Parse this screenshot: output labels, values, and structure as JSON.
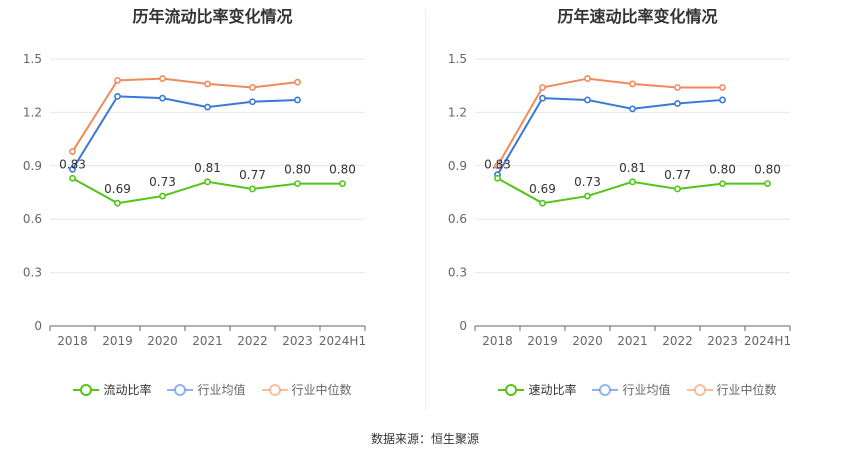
{
  "source_text": "数据来源：恒生聚源",
  "chart_data": [
    {
      "type": "line",
      "title": "历年流动比率变化情况",
      "categories": [
        "2018",
        "2019",
        "2020",
        "2021",
        "2022",
        "2023",
        "2024H1"
      ],
      "ylim": [
        0,
        1.5
      ],
      "yticks": [
        "0",
        "0.3",
        "0.6",
        "0.9",
        "1.2",
        "1.5"
      ],
      "grid": true,
      "legend_position": "bottom",
      "series": [
        {
          "name": "流动比率",
          "color": "#52c41a",
          "values": [
            0.83,
            0.69,
            0.73,
            0.81,
            0.77,
            0.8,
            0.8
          ],
          "labels": [
            "0.83",
            "0.69",
            "0.73",
            "0.81",
            "0.77",
            "0.80",
            "0.80"
          ],
          "show_labels": true
        },
        {
          "name": "行业均值",
          "color": "#3a78d8",
          "values": [
            0.88,
            1.29,
            1.28,
            1.23,
            1.26,
            1.27,
            null
          ],
          "show_labels": false
        },
        {
          "name": "行业中位数",
          "color": "#f08a5d",
          "values": [
            0.98,
            1.38,
            1.39,
            1.36,
            1.34,
            1.37,
            null
          ],
          "show_labels": false
        }
      ]
    },
    {
      "type": "line",
      "title": "历年速动比率变化情况",
      "categories": [
        "2018",
        "2019",
        "2020",
        "2021",
        "2022",
        "2023",
        "2024H1"
      ],
      "ylim": [
        0,
        1.5
      ],
      "yticks": [
        "0",
        "0.3",
        "0.6",
        "0.9",
        "1.2",
        "1.5"
      ],
      "grid": true,
      "legend_position": "bottom",
      "series": [
        {
          "name": "速动比率",
          "color": "#52c41a",
          "values": [
            0.83,
            0.69,
            0.73,
            0.81,
            0.77,
            0.8,
            0.8
          ],
          "labels": [
            "0.83",
            "0.69",
            "0.73",
            "0.81",
            "0.77",
            "0.80",
            "0.80"
          ],
          "show_labels": true
        },
        {
          "name": "行业均值",
          "color": "#3a78d8",
          "values": [
            0.85,
            1.28,
            1.27,
            1.22,
            1.25,
            1.27,
            null
          ],
          "show_labels": false
        },
        {
          "name": "行业中位数",
          "color": "#f08a5d",
          "values": [
            0.9,
            1.34,
            1.39,
            1.36,
            1.34,
            1.34,
            null
          ],
          "show_labels": false
        }
      ]
    }
  ]
}
